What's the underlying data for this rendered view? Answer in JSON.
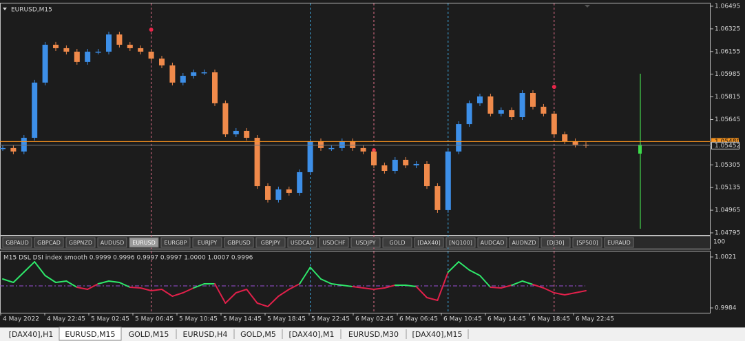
{
  "header": {
    "title": "EURUSD,M15"
  },
  "chart_data": [
    {
      "type": "candlestick",
      "closes": [
        1.05431,
        1.05405,
        1.05508,
        1.05922,
        1.06206,
        1.0618,
        1.06154,
        1.06077,
        1.06154,
        1.06154,
        1.06283,
        1.06206,
        1.0618,
        1.06154,
        1.06102,
        1.06051,
        1.05922,
        1.05973,
        1.05999,
        1.05999,
        1.05767,
        1.05534,
        1.0556,
        1.05508,
        1.05146,
        1.05043,
        1.05121,
        1.05095,
        1.0525,
        1.05482,
        1.05431,
        1.05431,
        1.05482,
        1.05431,
        1.05405,
        1.05301,
        1.0526,
        1.05343,
        1.05301,
        1.05312,
        1.05146,
        1.04966,
        1.05405,
        1.05611,
        1.05767,
        1.05818,
        1.05689,
        1.05715,
        1.05663,
        1.05844,
        1.05741,
        1.05689,
        1.05534,
        1.05482,
        1.05456,
        1.05452
      ],
      "up_color": "#3d8fe8",
      "down_color": "#f08a4b",
      "ylim": [
        1.04795,
        1.06495
      ],
      "yticks": [
        1.06495,
        1.06325,
        1.06155,
        1.05985,
        1.05815,
        1.05645,
        1.05305,
        1.05135,
        1.04965,
        1.04795
      ],
      "bid_line": {
        "value": 1.0548,
        "label": "1.05480",
        "color": "#f7931e"
      },
      "last_price": 1.05452,
      "markers": [
        {
          "index": 14,
          "price": 1.06319,
          "color": "#e8264a"
        },
        {
          "index": 29,
          "price": 1.05301,
          "color": "#3cb371"
        },
        {
          "index": 35,
          "price": 1.05415,
          "color": "#e8264a"
        },
        {
          "index": 42,
          "price": 1.05348,
          "color": "#3cb371"
        },
        {
          "index": 52,
          "price": 1.0589,
          "color": "#e8264a"
        }
      ]
    },
    {
      "type": "line",
      "label": "M15 DSL DSI index smooth 0.9999 0.9996 0.9997 0.9997 1.0000 1.0007 0.9996",
      "values": [
        1.0005,
        1.00025,
        1.001,
        1.00175,
        1.00075,
        1.00025,
        1.00035,
        0.9999,
        0.99975,
        1.00015,
        1.00035,
        1.00025,
        0.9999,
        0.99985,
        0.99965,
        0.99975,
        0.99925,
        0.9995,
        0.99985,
        1.00015,
        1.00015,
        0.99875,
        0.9995,
        0.99975,
        0.99875,
        0.9985,
        0.99925,
        0.99975,
        1.00015,
        1.00135,
        1.0005,
        1.00015,
        1.00005,
        0.99995,
        0.99985,
        0.99975,
        0.99985,
        1.00005,
        1.00005,
        0.99995,
        0.99915,
        0.99895,
        1.001,
        1.00175,
        1.00115,
        1.00075,
        0.9999,
        0.99985,
        1.00005,
        1.00035,
        1.0001,
        0.99985,
        0.9995,
        0.99935,
        0.9995,
        0.99965
      ],
      "ylim": [
        0.9984,
        1.0021
      ],
      "yticks": [
        1.0021,
        0.9984
      ],
      "level": 1.0,
      "up_color": "#2ee86a",
      "down_color": "#e0204a",
      "level_color": "#9b4fd8"
    }
  ],
  "panel_scale": 100,
  "symbols": [
    "GBPAUD",
    "GBPCAD",
    "GBPNZD",
    "AUDUSD",
    "EURUSD",
    "EURGBP",
    "EURJPY",
    "GBPUSD",
    "GBPJPY",
    "USDCAD",
    "USDCHF",
    "USDJPY",
    "GOLD",
    "[DAX40]",
    "[NQ100]",
    "AUDCAD",
    "AUDNZD",
    "[DJ30]",
    "[SP500]",
    "EURAUD"
  ],
  "active_symbol": "EURUSD",
  "time_labels": [
    "4 May 2022",
    "4 May 22:45",
    "5 May 02:45",
    "5 May 06:45",
    "5 May 10:45",
    "5 May 14:45",
    "5 May 18:45",
    "5 May 22:45",
    "6 May 02:45",
    "6 May 06:45",
    "6 May 10:45",
    "6 May 14:45",
    "6 May 18:45",
    "6 May 22:45"
  ],
  "tabs": [
    "[DAX40],H1",
    "EURUSD,M15",
    "GOLD,M15",
    "EURUSD,H4",
    "GOLD,M5",
    "[DAX40],M1",
    "EURUSD,M30",
    "[DAX40],M15"
  ],
  "active_tab": "EURUSD,M15"
}
